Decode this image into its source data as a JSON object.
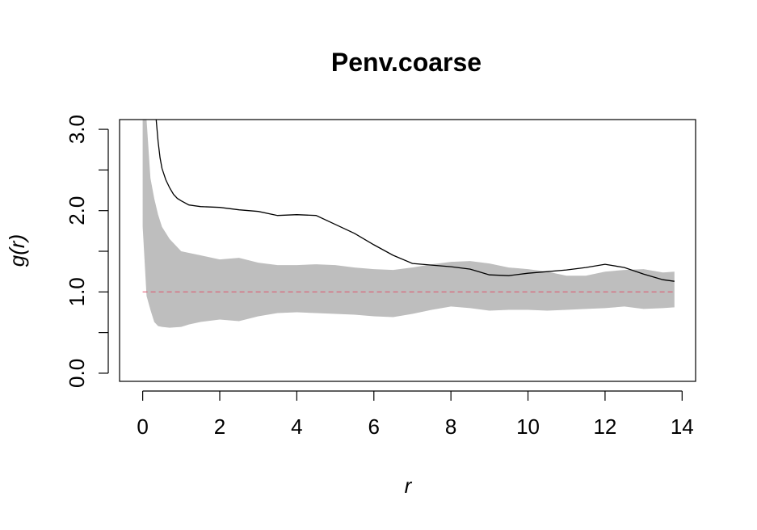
{
  "chart_data": {
    "type": "line",
    "title": "Penv.coarse",
    "xlabel": "r",
    "ylabel": "g(r)",
    "xlim": [
      -0.6,
      14.35
    ],
    "ylim": [
      -0.1,
      3.12
    ],
    "x_ticks": [
      0,
      2,
      4,
      6,
      8,
      10,
      12,
      14
    ],
    "x_tick_labels": [
      "0",
      "2",
      "4",
      "6",
      "8",
      "10",
      "12",
      "14"
    ],
    "y_ticks": [
      0,
      0.5,
      1,
      1.5,
      2,
      2.5,
      3
    ],
    "y_tick_labels": [
      "0.0",
      "",
      "1.0",
      "",
      "2.0",
      "",
      "3.0"
    ],
    "grid": false,
    "legend": "none",
    "colors": {
      "envelope": "#bebebe",
      "observed": "#000000",
      "theoretical": "#df536b"
    },
    "envelope": {
      "x": [
        0.0,
        0.1,
        0.2,
        0.3,
        0.4,
        0.5,
        0.7,
        1.0,
        1.2,
        1.5,
        2.0,
        2.5,
        3.0,
        3.5,
        4.0,
        4.5,
        5.0,
        5.5,
        6.0,
        6.5,
        7.0,
        7.5,
        8.0,
        8.5,
        9.0,
        9.5,
        10.0,
        10.5,
        11.0,
        11.5,
        12.0,
        12.5,
        13.0,
        13.5,
        13.8
      ],
      "upper": [
        3.12,
        3.12,
        2.4,
        2.15,
        1.95,
        1.8,
        1.65,
        1.5,
        1.48,
        1.45,
        1.4,
        1.42,
        1.36,
        1.33,
        1.33,
        1.34,
        1.33,
        1.3,
        1.28,
        1.27,
        1.3,
        1.34,
        1.37,
        1.38,
        1.35,
        1.3,
        1.28,
        1.25,
        1.2,
        1.2,
        1.25,
        1.27,
        1.28,
        1.24,
        1.25
      ],
      "lower": [
        1.8,
        0.95,
        0.78,
        0.63,
        0.58,
        0.57,
        0.56,
        0.57,
        0.6,
        0.63,
        0.66,
        0.64,
        0.7,
        0.74,
        0.75,
        0.74,
        0.73,
        0.72,
        0.7,
        0.69,
        0.73,
        0.78,
        0.82,
        0.8,
        0.77,
        0.78,
        0.78,
        0.77,
        0.78,
        0.79,
        0.8,
        0.82,
        0.79,
        0.8,
        0.81
      ]
    },
    "series": [
      {
        "x": [
          0.35,
          0.4,
          0.45,
          0.5,
          0.6,
          0.7,
          0.8,
          0.9,
          1.0,
          1.2,
          1.5,
          2.0,
          2.5,
          3.0,
          3.5,
          4.0,
          4.5,
          5.0,
          5.5,
          6.0,
          6.5,
          7.0,
          7.5,
          8.0,
          8.5,
          9.0,
          9.5,
          10.0,
          10.5,
          11.0,
          11.5,
          12.0,
          12.5,
          13.0,
          13.5,
          13.8
        ],
        "values": [
          3.12,
          2.85,
          2.65,
          2.52,
          2.38,
          2.28,
          2.2,
          2.15,
          2.12,
          2.07,
          2.05,
          2.04,
          2.01,
          1.99,
          1.94,
          1.95,
          1.94,
          1.83,
          1.72,
          1.58,
          1.45,
          1.35,
          1.33,
          1.31,
          1.28,
          1.21,
          1.2,
          1.23,
          1.25,
          1.27,
          1.3,
          1.34,
          1.3,
          1.22,
          1.15,
          1.13
        ]
      },
      {
        "x": [
          0.0,
          13.8
        ],
        "values": [
          1.0,
          1.0
        ]
      }
    ]
  }
}
